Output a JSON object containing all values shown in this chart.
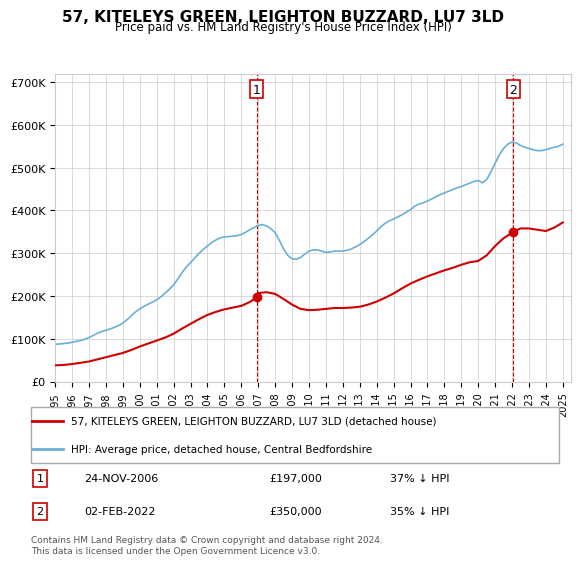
{
  "title": "57, KITELEYS GREEN, LEIGHTON BUZZARD, LU7 3LD",
  "subtitle": "Price paid vs. HM Land Registry's House Price Index (HPI)",
  "ylabel_ticks": [
    "£0",
    "£100K",
    "£200K",
    "£300K",
    "£400K",
    "£500K",
    "£600K",
    "£700K"
  ],
  "ylim": [
    0,
    720000
  ],
  "xlim_start": 1995.0,
  "xlim_end": 2025.5,
  "sale1_date": 2006.9,
  "sale1_price": 197000,
  "sale1_label": "1",
  "sale1_text": "24-NOV-2006    £197,000    37% ↓ HPI",
  "sale2_date": 2022.08,
  "sale2_price": 350000,
  "sale2_label": "2",
  "sale2_text": "02-FEB-2022    £350,000    35% ↓ HPI",
  "legend_line1": "57, KITELEYS GREEN, LEIGHTON BUZZARD, LU7 3LD (detached house)",
  "legend_line2": "HPI: Average price, detached house, Central Bedfordshire",
  "footer": "Contains HM Land Registry data © Crown copyright and database right 2024.\nThis data is licensed under the Open Government Licence v3.0.",
  "hpi_color": "#6baed6",
  "price_color": "#cc0000",
  "sale_marker_color": "#cc0000",
  "vline_color": "#cc0000",
  "background_color": "#ffffff",
  "grid_color": "#cccccc",
  "hpi_years": [
    1995.0,
    1995.25,
    1995.5,
    1995.75,
    1996.0,
    1996.25,
    1996.5,
    1996.75,
    1997.0,
    1997.25,
    1997.5,
    1997.75,
    1998.0,
    1998.25,
    1998.5,
    1998.75,
    1999.0,
    1999.25,
    1999.5,
    1999.75,
    2000.0,
    2000.25,
    2000.5,
    2000.75,
    2001.0,
    2001.25,
    2001.5,
    2001.75,
    2002.0,
    2002.25,
    2002.5,
    2002.75,
    2003.0,
    2003.25,
    2003.5,
    2003.75,
    2004.0,
    2004.25,
    2004.5,
    2004.75,
    2005.0,
    2005.25,
    2005.5,
    2005.75,
    2006.0,
    2006.25,
    2006.5,
    2006.75,
    2007.0,
    2007.25,
    2007.5,
    2007.75,
    2008.0,
    2008.25,
    2008.5,
    2008.75,
    2009.0,
    2009.25,
    2009.5,
    2009.75,
    2010.0,
    2010.25,
    2010.5,
    2010.75,
    2011.0,
    2011.25,
    2011.5,
    2011.75,
    2012.0,
    2012.25,
    2012.5,
    2012.75,
    2013.0,
    2013.25,
    2013.5,
    2013.75,
    2014.0,
    2014.25,
    2014.5,
    2014.75,
    2015.0,
    2015.25,
    2015.5,
    2015.75,
    2016.0,
    2016.25,
    2016.5,
    2016.75,
    2017.0,
    2017.25,
    2017.5,
    2017.75,
    2018.0,
    2018.25,
    2018.5,
    2018.75,
    2019.0,
    2019.25,
    2019.5,
    2019.75,
    2020.0,
    2020.25,
    2020.5,
    2020.75,
    2021.0,
    2021.25,
    2021.5,
    2021.75,
    2022.0,
    2022.25,
    2022.5,
    2022.75,
    2023.0,
    2023.25,
    2023.5,
    2023.75,
    2024.0,
    2024.25,
    2024.5,
    2024.75,
    2025.0
  ],
  "hpi_values": [
    87000,
    88000,
    89000,
    90000,
    92000,
    94000,
    96000,
    99000,
    103000,
    108000,
    113000,
    117000,
    120000,
    123000,
    127000,
    131000,
    137000,
    145000,
    154000,
    163000,
    170000,
    176000,
    181000,
    186000,
    191000,
    198000,
    207000,
    216000,
    226000,
    240000,
    255000,
    268000,
    278000,
    289000,
    300000,
    309000,
    317000,
    325000,
    331000,
    336000,
    338000,
    339000,
    340000,
    341000,
    344000,
    349000,
    355000,
    360000,
    365000,
    367000,
    364000,
    357000,
    348000,
    330000,
    310000,
    295000,
    287000,
    286000,
    290000,
    298000,
    305000,
    308000,
    308000,
    305000,
    302000,
    303000,
    305000,
    305000,
    305000,
    307000,
    310000,
    315000,
    320000,
    327000,
    335000,
    343000,
    352000,
    362000,
    370000,
    376000,
    380000,
    385000,
    390000,
    396000,
    402000,
    410000,
    415000,
    418000,
    422000,
    427000,
    432000,
    437000,
    441000,
    445000,
    449000,
    453000,
    456000,
    460000,
    464000,
    468000,
    470000,
    465000,
    472000,
    490000,
    510000,
    530000,
    545000,
    555000,
    560000,
    558000,
    552000,
    548000,
    545000,
    542000,
    540000,
    540000,
    542000,
    545000,
    548000,
    550000,
    555000
  ],
  "price_years": [
    1995.0,
    1995.5,
    1996.0,
    1996.5,
    1997.0,
    1997.5,
    1998.0,
    1998.5,
    1999.0,
    1999.5,
    2000.0,
    2000.5,
    2001.0,
    2001.5,
    2002.0,
    2002.5,
    2003.0,
    2003.5,
    2004.0,
    2004.5,
    2005.0,
    2005.5,
    2006.0,
    2006.5,
    2006.9,
    2007.0,
    2007.5,
    2008.0,
    2008.5,
    2009.0,
    2009.5,
    2010.0,
    2010.5,
    2011.0,
    2011.5,
    2012.0,
    2012.5,
    2013.0,
    2013.5,
    2014.0,
    2014.5,
    2015.0,
    2015.5,
    2016.0,
    2016.5,
    2017.0,
    2017.5,
    2018.0,
    2018.5,
    2019.0,
    2019.5,
    2020.0,
    2020.5,
    2021.0,
    2021.5,
    2022.08,
    2022.5,
    2023.0,
    2023.5,
    2024.0,
    2024.5,
    2025.0
  ],
  "price_values": [
    38000,
    39000,
    41000,
    44000,
    47000,
    52000,
    57000,
    62000,
    67000,
    74000,
    82000,
    89000,
    96000,
    103000,
    112000,
    124000,
    135000,
    146000,
    156000,
    163000,
    169000,
    173000,
    177000,
    186000,
    197000,
    207000,
    209000,
    205000,
    193000,
    180000,
    170000,
    167000,
    168000,
    170000,
    172000,
    172000,
    173000,
    175000,
    180000,
    187000,
    196000,
    206000,
    218000,
    229000,
    238000,
    246000,
    253000,
    260000,
    266000,
    273000,
    279000,
    282000,
    295000,
    317000,
    335000,
    350000,
    358000,
    358000,
    355000,
    352000,
    360000,
    372000
  ]
}
